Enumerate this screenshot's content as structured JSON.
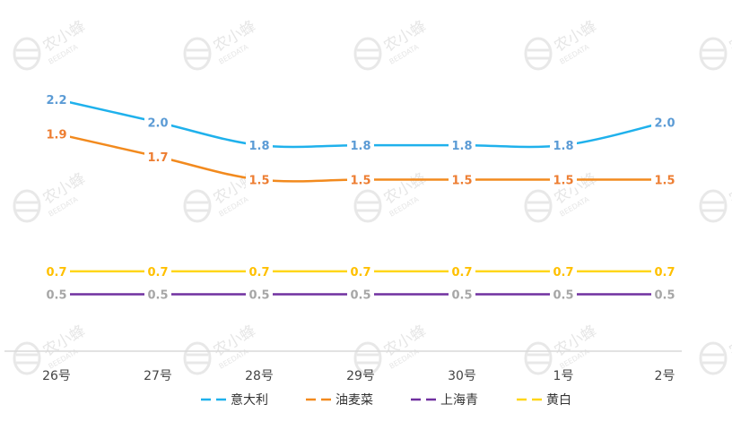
{
  "chart_data": {
    "type": "line",
    "title": "",
    "xlabel": "",
    "ylabel": "",
    "categories": [
      "26号",
      "27号",
      "28号",
      "29号",
      "30号",
      "1号",
      "2号"
    ],
    "ylim": [
      0,
      2.4
    ],
    "grid": false,
    "legend_position": "bottom",
    "series": [
      {
        "name": "意大利",
        "color": "#1fb1ec",
        "label_color": "#5b9bd5",
        "values": [
          2.2,
          2.0,
          1.8,
          1.8,
          1.8,
          1.8,
          2.0
        ]
      },
      {
        "name": "油麦菜",
        "color": "#f28a1e",
        "label_color": "#ed7d31",
        "values": [
          1.9,
          1.7,
          1.5,
          1.5,
          1.5,
          1.5,
          1.5
        ]
      },
      {
        "name": "上海青",
        "color": "#7030a0",
        "label_color": "#a6a6a6",
        "values": [
          0.5,
          0.5,
          0.5,
          0.5,
          0.5,
          0.5,
          0.5
        ]
      },
      {
        "name": "黄白",
        "color": "#ffd619",
        "label_color": "#ffc000",
        "values": [
          0.7,
          0.7,
          0.7,
          0.7,
          0.7,
          0.7,
          0.7
        ]
      }
    ]
  },
  "watermark": {
    "logo_text": "农小蜂",
    "sub_text": "BEEDATA"
  }
}
